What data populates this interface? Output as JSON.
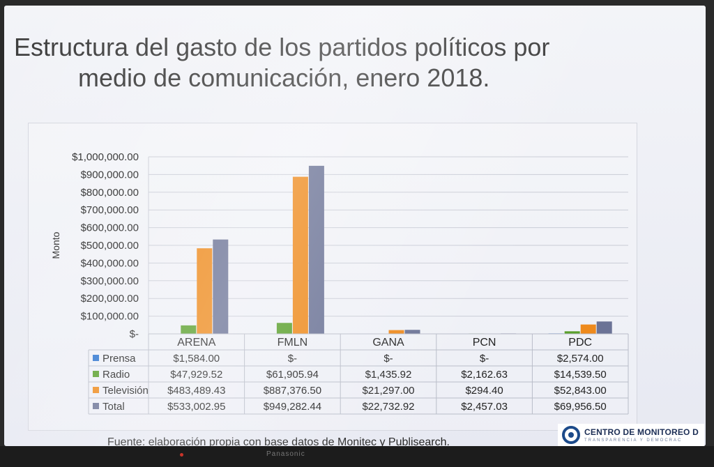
{
  "slide": {
    "title_line1": "Estructura del gasto de los partidos políticos por",
    "title_line2": "medio de comunicación, enero 2018.",
    "source": "Fuente: elaboración propia con base datos de Monitec y Publisearch.",
    "logo_name": "CENTRO DE MONITOREO D",
    "logo_tag": "TRANSPARENCIA Y DEMOCRAC",
    "tv_brand": "Panasonic"
  },
  "chart_data": {
    "type": "bar",
    "title": "",
    "ylabel": "Monto",
    "xlabel": "",
    "ylim": [
      0,
      1000000
    ],
    "grid": true,
    "y_ticks": [
      "$-",
      "$100,000.00",
      "$200,000.00",
      "$300,000.00",
      "$400,000.00",
      "$500,000.00",
      "$600,000.00",
      "$700,000.00",
      "$800,000.00",
      "$900,000.00",
      "$1,000,000.00"
    ],
    "categories": [
      "ARENA",
      "FMLN",
      "GANA",
      "PCN",
      "PDC"
    ],
    "series": [
      {
        "name": "Prensa",
        "color": "#2e75d0",
        "values": [
          1584.0,
          0,
          0,
          0,
          2574.0
        ],
        "labels": [
          "$1,584.00",
          "$-",
          "$-",
          "$-",
          "$2,574.00"
        ]
      },
      {
        "name": "Radio",
        "color": "#5aa02c",
        "values": [
          47929.52,
          61905.94,
          1435.92,
          2162.63,
          14539.5
        ],
        "labels": [
          "$47,929.52",
          "$61,905.94",
          "$1,435.92",
          "$2,162.63",
          "$14,539.50"
        ]
      },
      {
        "name": "Televisión",
        "color": "#ee8a1c",
        "values": [
          483489.43,
          887376.5,
          21297.0,
          294.4,
          52843.0
        ],
        "labels": [
          "$483,489.43",
          "$887,376.50",
          "$21,297.00",
          "$294.40",
          "$52,843.00"
        ]
      },
      {
        "name": "Total",
        "color": "#6b7396",
        "values": [
          533002.95,
          949282.44,
          22732.92,
          2457.03,
          69956.5
        ],
        "labels": [
          "$533,002.95",
          "$949,282.44",
          "$22,732.92",
          "$2,457.03",
          "$69,956.50"
        ]
      }
    ]
  }
}
